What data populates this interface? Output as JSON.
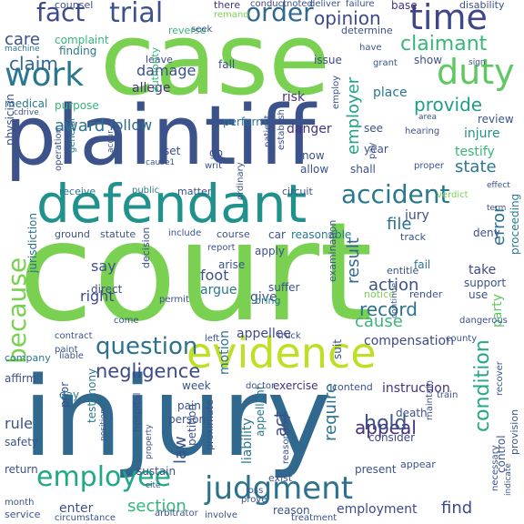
{
  "cloud": {
    "words": [
      {
        "text": "court",
        "color": "#7ad151"
      },
      {
        "text": "injury",
        "color": "#31688e"
      },
      {
        "text": "plaintiff",
        "color": "#3b528b"
      },
      {
        "text": "case",
        "color": "#7ad151"
      },
      {
        "text": "defendant",
        "color": "#21918c"
      },
      {
        "text": "evidence",
        "color": "#bddf26"
      },
      {
        "text": "judgment",
        "color": "#2c728e"
      },
      {
        "text": "employee",
        "color": "#22a884"
      },
      {
        "text": "work",
        "color": "#2a788e"
      },
      {
        "text": "trial",
        "color": "#3b528b"
      },
      {
        "text": "time",
        "color": "#404688"
      },
      {
        "text": "order",
        "color": "#31688e"
      },
      {
        "text": "duty",
        "color": "#5ec962"
      },
      {
        "text": "fact",
        "color": "#3e4989"
      },
      {
        "text": "accident",
        "color": "#2a788e"
      },
      {
        "text": "question",
        "color": "#2c728e"
      },
      {
        "text": "claimant",
        "color": "#35b779"
      },
      {
        "text": "because",
        "color": "#7ad151"
      },
      {
        "text": "negligence",
        "color": "#3e4989"
      },
      {
        "text": "condition",
        "color": "#22a884"
      },
      {
        "text": "appeal",
        "color": "#46327e"
      },
      {
        "text": "record",
        "color": "#2c728e"
      },
      {
        "text": "cause",
        "color": "#35b779"
      },
      {
        "text": "opinion",
        "color": "#3e4989"
      },
      {
        "text": "provide",
        "color": "#1f9e89"
      },
      {
        "text": "claim",
        "color": "#31688e"
      },
      {
        "text": "hold",
        "color": "#3b528b"
      },
      {
        "text": "find",
        "color": "#3e4989"
      },
      {
        "text": "section",
        "color": "#35b779"
      },
      {
        "text": "employer",
        "color": "#20a486"
      },
      {
        "text": "action",
        "color": "#3b528b"
      },
      {
        "text": "file",
        "color": "#2c728e"
      },
      {
        "text": "state",
        "color": "#2a788e"
      },
      {
        "text": "award",
        "color": "#2c728e"
      },
      {
        "text": "result",
        "color": "#31688e"
      },
      {
        "text": "error",
        "color": "#2c728e"
      },
      {
        "text": "care",
        "color": "#3b528b"
      },
      {
        "text": "require",
        "color": "#2c728e"
      },
      {
        "text": "damage",
        "color": "#3b528b"
      },
      {
        "text": "follow",
        "color": "#31688e"
      },
      {
        "text": "allege",
        "color": "#46327e"
      },
      {
        "text": "say",
        "color": "#3b528b"
      },
      {
        "text": "right",
        "color": "#3e4989"
      },
      {
        "text": "law",
        "color": "#3b528b"
      },
      {
        "text": "act",
        "color": "#3e4989"
      },
      {
        "text": "rule",
        "color": "#3b528b"
      },
      {
        "text": "jury",
        "color": "#3b528b"
      },
      {
        "text": "employment",
        "color": "#3e4989"
      },
      {
        "text": "liability",
        "color": "#2a788e"
      },
      {
        "text": "testify",
        "color": "#35b779"
      },
      {
        "text": "injure",
        "color": "#21918c"
      },
      {
        "text": "party",
        "color": "#5ec962"
      },
      {
        "text": "place",
        "color": "#2a788e"
      },
      {
        "text": "danger",
        "color": "#46327e"
      },
      {
        "text": "compensation",
        "color": "#3e4989"
      },
      {
        "text": "instruction",
        "color": "#46327e"
      },
      {
        "text": "enter",
        "color": "#3b528b"
      },
      {
        "text": "give",
        "color": "#3b528b"
      },
      {
        "text": "foot",
        "color": "#3b528b"
      },
      {
        "text": "argue",
        "color": "#2a788e"
      },
      {
        "text": "motion",
        "color": "#2c728e"
      },
      {
        "text": "risk",
        "color": "#46327e"
      },
      {
        "text": "issue",
        "color": "#3e4989"
      },
      {
        "text": "purpose",
        "color": "#35b779"
      },
      {
        "text": "deny",
        "color": "#3b528b"
      },
      {
        "text": "take",
        "color": "#3e4989"
      },
      {
        "text": "support",
        "color": "#3b528b"
      },
      {
        "text": "use",
        "color": "#3b528b"
      },
      {
        "text": "exercise",
        "color": "#46327e"
      },
      {
        "text": "death",
        "color": "#3b528b"
      },
      {
        "text": "consider",
        "color": "#3e4989"
      },
      {
        "text": "present",
        "color": "#3b528b"
      },
      {
        "text": "reason",
        "color": "#3b528b"
      },
      {
        "text": "counsel",
        "color": "#3b528b"
      },
      {
        "text": "there",
        "color": "#46327e"
      },
      {
        "text": "conduct",
        "color": "#3e4989"
      },
      {
        "text": "remand",
        "color": "#7ad151"
      },
      {
        "text": "base",
        "color": "#46327e"
      },
      {
        "text": "disability",
        "color": "#3b528b"
      },
      {
        "text": "determine",
        "color": "#3b528b"
      },
      {
        "text": "complaint",
        "color": "#35b779"
      },
      {
        "text": "finding",
        "color": "#2a788e"
      },
      {
        "text": "machine",
        "color": "#2a788e"
      },
      {
        "text": "reverse",
        "color": "#35b779"
      },
      {
        "text": "leave",
        "color": "#3e4989"
      },
      {
        "text": "fall",
        "color": "#3b528b"
      },
      {
        "text": "have",
        "color": "#3b528b"
      },
      {
        "text": "show",
        "color": "#3b528b"
      },
      {
        "text": "medical",
        "color": "#2a788e"
      },
      {
        "text": "authority",
        "color": "#35b779"
      },
      {
        "text": "perform",
        "color": "#2c728e"
      },
      {
        "text": "see",
        "color": "#3b528b"
      },
      {
        "text": "review",
        "color": "#3b528b"
      },
      {
        "text": "physician",
        "color": "#3b528b"
      },
      {
        "text": "set",
        "color": "#3e4989"
      },
      {
        "text": "know",
        "color": "#3b528b"
      },
      {
        "text": "allow",
        "color": "#3b528b"
      },
      {
        "text": "shall",
        "color": "#3b528b"
      },
      {
        "text": "year",
        "color": "#3b528b"
      },
      {
        "text": "receive",
        "color": "#2a788e"
      },
      {
        "text": "public",
        "color": "#2a788e"
      },
      {
        "text": "matter",
        "color": "#3b528b"
      },
      {
        "text": "circuit",
        "color": "#3b528b"
      },
      {
        "text": "verdict",
        "color": "#7ad151"
      },
      {
        "text": "effect",
        "color": "#3b528b"
      },
      {
        "text": "ground",
        "color": "#3b528b"
      },
      {
        "text": "statute",
        "color": "#3b528b"
      },
      {
        "text": "include",
        "color": "#3b528b"
      },
      {
        "text": "course",
        "color": "#3b528b"
      },
      {
        "text": "car",
        "color": "#3b528b"
      },
      {
        "text": "reasonable",
        "color": "#2a788e"
      },
      {
        "text": "track",
        "color": "#3b528b"
      },
      {
        "text": "apply",
        "color": "#3b528b"
      },
      {
        "text": "arise",
        "color": "#3b528b"
      },
      {
        "text": "fail",
        "color": "#2c728e"
      },
      {
        "text": "entitle",
        "color": "#3b528b"
      },
      {
        "text": "proceeding",
        "color": "#2a788e"
      },
      {
        "text": "direct",
        "color": "#3b528b"
      },
      {
        "text": "suffer",
        "color": "#3b528b"
      },
      {
        "text": "bring",
        "color": "#2a788e"
      },
      {
        "text": "notice",
        "color": "#7ad151"
      },
      {
        "text": "render",
        "color": "#3b528b"
      },
      {
        "text": "jurisdiction",
        "color": "#2c728e"
      },
      {
        "text": "decision",
        "color": "#3b528b"
      },
      {
        "text": "examination",
        "color": "#3b528b"
      },
      {
        "text": "appellee",
        "color": "#3e4989"
      },
      {
        "text": "truck",
        "color": "#3b528b"
      },
      {
        "text": "suit",
        "color": "#3b528b"
      },
      {
        "text": "company",
        "color": "#2a788e"
      },
      {
        "text": "week",
        "color": "#3b528b"
      },
      {
        "text": "pain",
        "color": "#3b528b"
      },
      {
        "text": "person",
        "color": "#3b528b"
      },
      {
        "text": "affirm",
        "color": "#3b528b"
      },
      {
        "text": "day",
        "color": "#2a788e"
      },
      {
        "text": "safety",
        "color": "#3b528b"
      },
      {
        "text": "testimony",
        "color": "#2a788e"
      },
      {
        "text": "prior",
        "color": "#3b528b"
      },
      {
        "text": "hospital",
        "color": "#3b528b"
      },
      {
        "text": "appellant",
        "color": "#2a788e"
      },
      {
        "text": "return",
        "color": "#3b528b"
      },
      {
        "text": "sustain",
        "color": "#3b528b"
      },
      {
        "text": "petition",
        "color": "#3b528b"
      },
      {
        "text": "proximate",
        "color": "#3b528b"
      },
      {
        "text": "exist",
        "color": "#3b528b"
      },
      {
        "text": "appear",
        "color": "#3b528b"
      },
      {
        "text": "month",
        "color": "#3b528b"
      },
      {
        "text": "service",
        "color": "#3b528b"
      },
      {
        "text": "prove",
        "color": "#3b528b"
      },
      {
        "text": "treatment",
        "color": "#3b528b"
      },
      {
        "text": "control",
        "color": "#3b528b"
      },
      {
        "text": "provision",
        "color": "#3b528b"
      },
      {
        "text": "necessary",
        "color": "#3b528b"
      },
      {
        "text": "operation",
        "color": "#3b528b"
      },
      {
        "text": "general",
        "color": "#2a788e"
      },
      {
        "text": "patient",
        "color": "#3b528b"
      },
      {
        "text": "ordinary",
        "color": "#3b528b"
      },
      {
        "text": "establish",
        "color": "#3b528b"
      },
      {
        "text": "employ",
        "color": "#3b528b"
      },
      {
        "text": "hearing",
        "color": "#3b528b"
      },
      {
        "text": "area",
        "color": "#3b528b"
      },
      {
        "text": "go",
        "color": "#3b528b"
      },
      {
        "text": "writ",
        "color": "#3b528b"
      },
      {
        "text": "loss",
        "color": "#3b528b"
      },
      {
        "text": "contend",
        "color": "#3b528b"
      },
      {
        "text": "doctor",
        "color": "#3b528b"
      },
      {
        "text": "train",
        "color": "#3b528b"
      },
      {
        "text": "recover",
        "color": "#3b528b"
      },
      {
        "text": "maintain",
        "color": "#3b528b"
      },
      {
        "text": "contract",
        "color": "#3b528b"
      },
      {
        "text": "liable",
        "color": "#3b528b"
      },
      {
        "text": "paint",
        "color": "#3b528b"
      },
      {
        "text": "position",
        "color": "#3b528b"
      },
      {
        "text": "property",
        "color": "#3b528b"
      },
      {
        "text": "reasonably",
        "color": "#3b528b"
      },
      {
        "text": "seek",
        "color": "#3b528b"
      },
      {
        "text": "noted",
        "color": "#3b528b"
      },
      {
        "text": "deliver",
        "color": "#3b528b"
      },
      {
        "text": "failure",
        "color": "#3b528b"
      },
      {
        "text": "accur",
        "color": "#3b528b"
      },
      {
        "text": "proper",
        "color": "#3b528b"
      },
      {
        "text": "come",
        "color": "#3b528b"
      },
      {
        "text": "county",
        "color": "#3b528b"
      },
      {
        "text": "dangerous",
        "color": "#3b528b"
      },
      {
        "text": "continue",
        "color": "#3b528b"
      },
      {
        "text": "arbitrator",
        "color": "#3b528b"
      },
      {
        "text": "involve",
        "color": "#3b528b"
      },
      {
        "text": "circumstance",
        "color": "#3b528b"
      },
      {
        "text": "cite",
        "color": "#3b528b"
      },
      {
        "text": "permit",
        "color": "#3b528b"
      },
      {
        "text": "report",
        "color": "#3b528b"
      },
      {
        "text": "grant",
        "color": "#3b528b"
      },
      {
        "text": "sign",
        "color": "#3b528b"
      },
      {
        "text": "cdrive",
        "color": "#3b528b"
      },
      {
        "text": "cause1",
        "color": "#3b528b"
      },
      {
        "text": "left",
        "color": "#3b528b"
      },
      {
        "text": "term",
        "color": "#3b528b"
      },
      {
        "text": "indicate",
        "color": "#3b528b"
      },
      {
        "text": "pay",
        "color": "#3b528b"
      }
    ]
  }
}
